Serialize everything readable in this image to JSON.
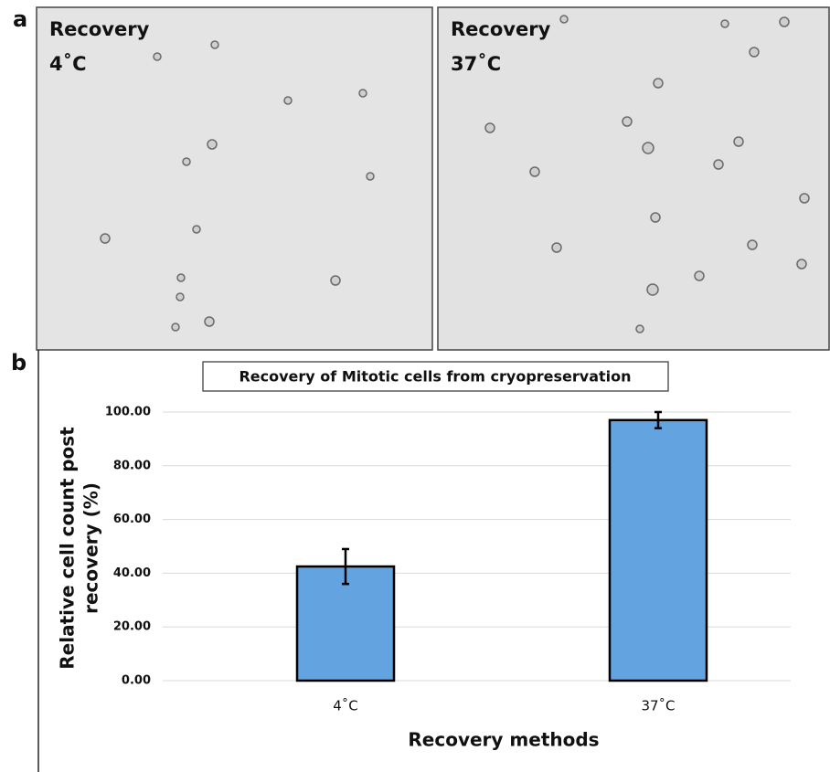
{
  "figure": {
    "panel_labels": [
      "a",
      "b"
    ],
    "images": [
      {
        "label_lines": [
          "Recovery",
          "4˚C"
        ]
      },
      {
        "label_lines": [
          "Recovery",
          "37˚C"
        ]
      }
    ]
  },
  "chart_data": {
    "type": "bar",
    "title": "Recovery of Mitotic cells from cryopreservation",
    "xlabel": "Recovery methods",
    "ylabel": [
      "Relative cell count post",
      "recovery (%)"
    ],
    "categories": [
      "4˚C",
      "37˚C"
    ],
    "values": [
      42.5,
      97
    ],
    "errors": [
      6.5,
      3
    ],
    "color": "#63a3e0",
    "ylim": [
      0,
      100
    ],
    "yticks": [
      {
        "value": 0,
        "label": "0.00"
      },
      {
        "value": 20,
        "label": "20.00"
      },
      {
        "value": 40,
        "label": "40.00"
      },
      {
        "value": 60,
        "label": "60.00"
      },
      {
        "value": 80,
        "label": "80.00"
      },
      {
        "value": 100,
        "label": "100.00"
      }
    ],
    "grid": true
  }
}
